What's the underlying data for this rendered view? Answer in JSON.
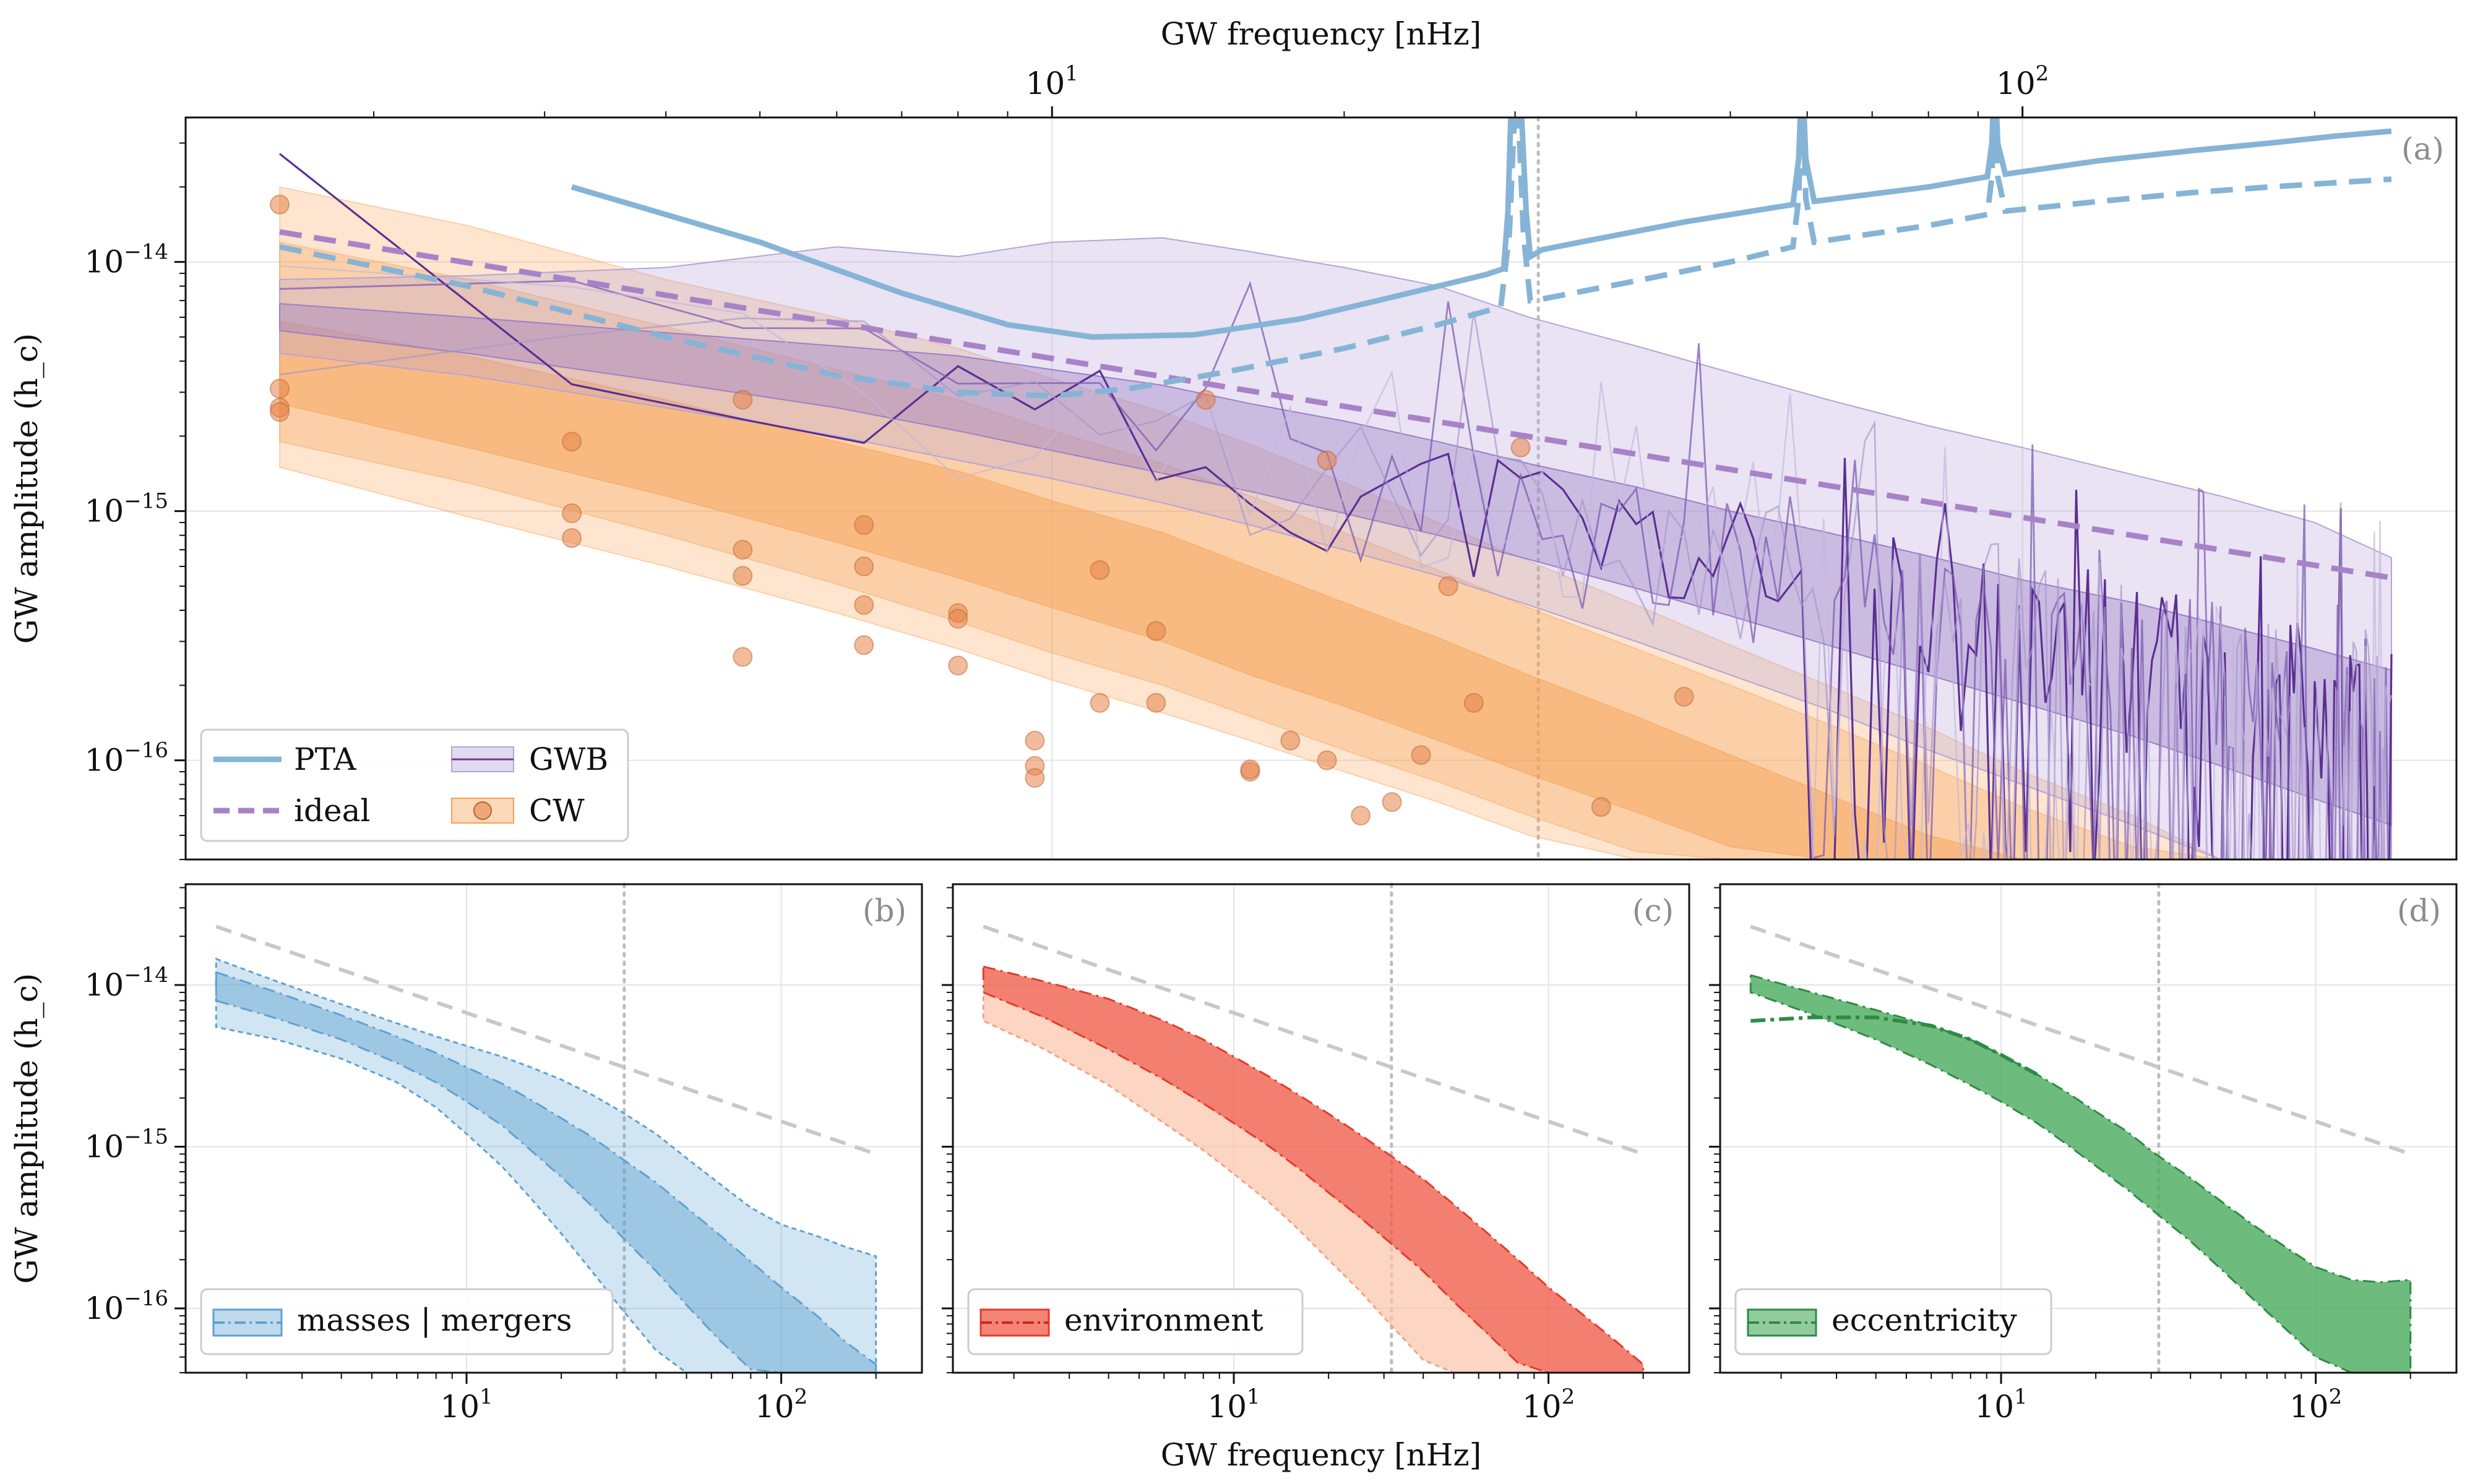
{
  "figure": {
    "top_xlabel": "GW frequency [nHz]",
    "bottom_xlabel": "GW frequency [nHz]",
    "ylabel": "GW amplitude (h_c)"
  },
  "chart_data": [
    {
      "panel": "(a)",
      "type": "line",
      "xscale": "log",
      "yscale": "log",
      "xlim": [
        1.28,
        280
      ],
      "ylim": [
        4e-17,
        3.8e-14
      ],
      "grid": true,
      "x_tick_labels": [
        "10^1",
        "10^2"
      ],
      "y_tick_labels": [
        "10^-14",
        "10^-15",
        "10^-16"
      ],
      "legend": {
        "placement": "lower-left",
        "entries": [
          "PTA",
          "ideal",
          "GWB",
          "CW"
        ]
      },
      "vline_x": 31.7,
      "colors": {
        "pta": "#86b4d6",
        "ideal": "#a882c8",
        "gwb": "#6a3d9a",
        "gwb_band": "#b7a3d6",
        "cw": "#f7a052",
        "cw_point": "#e8844a"
      },
      "series": [
        {
          "name": "PTA",
          "style": "solid",
          "x": [
            3.2,
            5,
            7,
            9,
            11,
            14,
            18,
            22,
            26,
            28,
            29.2,
            29.5,
            29.8,
            30.3,
            30.8,
            31.1,
            32,
            35,
            45,
            58,
            58.8,
            59.3,
            59.8,
            61,
            80,
            92,
            93,
            93.6,
            94.3,
            96,
            120,
            150,
            180,
            210,
            240
          ],
          "y": [
            2e-14,
            1.2e-14,
            7.5e-15,
            5.6e-15,
            5e-15,
            5.1e-15,
            5.9e-15,
            7.1e-15,
            8.3e-15,
            8.9e-15,
            9.4e-15,
            1.6e-14,
            6e-14,
            6e-14,
            1.6e-14,
            1.05e-14,
            1.12e-14,
            1.2e-14,
            1.45e-14,
            1.7e-14,
            2.6e-14,
            6e-14,
            2.6e-14,
            1.75e-14,
            2e-14,
            2.2e-14,
            3e-14,
            6e-14,
            3e-14,
            2.25e-14,
            2.55e-14,
            2.8e-14,
            3e-14,
            3.2e-14,
            3.35e-14
          ]
        },
        {
          "name": "PTA (ideal)",
          "style": "dashed",
          "x": [
            1.6,
            2.5,
            4,
            6,
            8,
            10,
            12,
            15,
            20,
            25,
            29,
            29.6,
            30.1,
            30.6,
            31.1,
            32,
            40,
            50,
            58,
            58.8,
            59.3,
            59.8,
            61,
            80,
            92,
            93,
            93.6,
            94.3,
            96,
            120,
            150,
            180,
            240
          ],
          "y": [
            1.15e-14,
            8e-15,
            5e-15,
            3.5e-15,
            3e-15,
            2.9e-15,
            3.1e-15,
            3.6e-15,
            4.5e-15,
            5.6e-15,
            6.6e-15,
            1.3e-14,
            6e-14,
            1.3e-14,
            7e-15,
            7.1e-15,
            8.4e-15,
            1e-14,
            1.15e-14,
            1.8e-14,
            6e-14,
            1.8e-14,
            1.2e-14,
            1.4e-14,
            1.55e-14,
            2.2e-14,
            6e-14,
            2.2e-14,
            1.6e-14,
            1.75e-14,
            1.9e-14,
            2e-14,
            2.15e-14
          ]
        },
        {
          "name": "ideal",
          "style": "dashed",
          "x": [
            1.6,
            240
          ],
          "y": [
            1.32e-14,
            5.4e-16
          ]
        },
        {
          "name": "GWB",
          "style": "realizations",
          "x": [
            1.6,
            2.5,
            4,
            6,
            8,
            10,
            13,
            16,
            20,
            25,
            31,
            40,
            50,
            63,
            80,
            100,
            130,
            160,
            200,
            240
          ],
          "y_median": [
            6e-15,
            4.9e-15,
            3.8e-15,
            3e-15,
            2.5e-15,
            2.1e-15,
            1.75e-15,
            1.5e-15,
            1.28e-15,
            1.08e-15,
            9e-16,
            7.3e-16,
            6e-16,
            4.9e-16,
            4e-16,
            3.2e-16,
            2.6e-16,
            2.2e-16,
            1.8e-16,
            1.6e-16
          ],
          "band_outer_lo": [
            4.3e-15,
            3.5e-15,
            2.6e-15,
            2e-15,
            1.6e-15,
            1.35e-15,
            1.08e-15,
            8.8e-16,
            7e-16,
            5.5e-16,
            4.2e-16,
            3e-16,
            2.2e-16,
            1.6e-16,
            1.1e-16,
            8e-17,
            5.5e-17,
            4e-17,
            4e-17,
            4e-17
          ],
          "band_outer_hi": [
            8.5e-15,
            8.8e-15,
            9.5e-15,
            1.15e-14,
            1.05e-14,
            1.2e-14,
            1.25e-14,
            1.1e-14,
            9.5e-15,
            8e-15,
            6e-15,
            4.6e-15,
            3.6e-15,
            2.8e-15,
            2.2e-15,
            1.8e-15,
            1.4e-15,
            1.15e-15,
            9e-16,
            6.5e-16
          ],
          "band_inner_lo": [
            5.3e-15,
            4.3e-15,
            3.3e-15,
            2.6e-15,
            2.1e-15,
            1.75e-15,
            1.42e-15,
            1.2e-15,
            9.8e-16,
            8e-16,
            6.4e-16,
            4.9e-16,
            3.8e-16,
            2.9e-16,
            2.2e-16,
            1.7e-16,
            1.25e-16,
            9.5e-17,
            7e-17,
            5.5e-17
          ],
          "band_inner_hi": [
            6.8e-15,
            6e-15,
            5.2e-15,
            4.6e-15,
            4.2e-15,
            3.7e-15,
            3.2e-15,
            2.7e-15,
            2.3e-15,
            1.9e-15,
            1.55e-15,
            1.25e-15,
            1e-15,
            8.2e-16,
            6.6e-16,
            5.3e-16,
            4.3e-16,
            3.5e-16,
            2.8e-16,
            2.3e-16
          ]
        },
        {
          "name": "CW",
          "style": "bands",
          "x": [
            1.6,
            2.5,
            4,
            6,
            8,
            10,
            13,
            16,
            20,
            25,
            31,
            40,
            50,
            63,
            80,
            100,
            130,
            160,
            200,
            240
          ],
          "band_outer_lo": [
            1.5e-15,
            9.5e-16,
            6e-16,
            3.9e-16,
            2.8e-16,
            2.1e-16,
            1.55e-16,
            1.2e-16,
            9e-17,
            6.8e-17,
            5e-17,
            4e-17,
            4e-17,
            4e-17,
            4e-17,
            4e-17,
            4e-17,
            4e-17,
            4e-17,
            4e-17
          ],
          "band_outer_hi": [
            2e-14,
            1.4e-14,
            8.5e-15,
            6e-15,
            4.5e-15,
            3.4e-15,
            2.5e-15,
            1.85e-15,
            1.3e-15,
            9e-16,
            6.3e-16,
            4.2e-16,
            2.9e-16,
            2e-16,
            1.35e-16,
            9e-17,
            6e-17,
            4e-17,
            4e-17,
            4e-17
          ],
          "band_mid_lo": [
            1.9e-15,
            1.3e-15,
            8e-16,
            5.1e-16,
            3.6e-16,
            2.7e-16,
            2e-16,
            1.5e-16,
            1.1e-16,
            8.2e-17,
            6e-17,
            4.3e-17,
            4e-17,
            4e-17,
            4e-17,
            4e-17,
            4e-17,
            4e-17,
            4e-17,
            4e-17
          ],
          "band_mid_hi": [
            1.2e-14,
            8.5e-15,
            5.5e-15,
            3.7e-15,
            2.8e-15,
            2.1e-15,
            1.55e-15,
            1.15e-15,
            8.2e-16,
            5.8e-16,
            4.1e-16,
            2.8e-16,
            2e-16,
            1.4e-16,
            9.5e-17,
            6.5e-17,
            4.5e-17,
            4e-17,
            4e-17,
            4e-17
          ],
          "band_inner_lo": [
            2.7e-15,
            1.8e-15,
            1.15e-15,
            7.5e-16,
            5.4e-16,
            4.1e-16,
            3e-16,
            2.2e-16,
            1.65e-16,
            1.2e-16,
            8.8e-17,
            6.2e-17,
            4.5e-17,
            4e-17,
            4e-17,
            4e-17,
            4e-17,
            4e-17,
            4e-17,
            4e-17
          ],
          "band_inner_hi": [
            5.8e-15,
            4.2e-15,
            2.8e-15,
            1.9e-15,
            1.45e-15,
            1.1e-15,
            8.2e-16,
            6e-16,
            4.3e-16,
            3.1e-16,
            2.2e-16,
            1.5e-16,
            1.05e-16,
            7.3e-17,
            5e-17,
            4e-17,
            4e-17,
            4e-17,
            4e-17,
            4e-17
          ],
          "points_x": [
            1.6,
            1.6,
            1.6,
            1.6,
            3.2,
            3.2,
            3.2,
            4.8,
            4.8,
            4.8,
            4.8,
            6.4,
            6.4,
            6.4,
            6.4,
            8.0,
            8.0,
            8.0,
            9.6,
            9.6,
            9.6,
            11.2,
            11.2,
            12.8,
            12.8,
            14.4,
            16.0,
            16.0,
            17.6,
            19.2,
            19.2,
            20.8,
            22.4,
            24.0,
            25.6,
            27.2,
            30.4,
            36.8,
            44.8
          ],
          "points_y": [
            1.7e-14,
            3.1e-15,
            2.6e-15,
            2.5e-15,
            1.9e-15,
            9.8e-16,
            7.8e-16,
            2.8e-15,
            7e-16,
            5.5e-16,
            2.6e-16,
            8.8e-16,
            6e-16,
            4.2e-16,
            2.9e-16,
            3.9e-16,
            3.7e-16,
            2.4e-16,
            9.5e-17,
            8.5e-17,
            1.2e-16,
            5.8e-16,
            1.7e-16,
            3.3e-16,
            1.7e-16,
            2.8e-15,
            9e-17,
            9.2e-17,
            1.2e-16,
            1.6e-15,
            1e-16,
            6e-17,
            6.8e-17,
            1.05e-16,
            5e-16,
            1.7e-16,
            1.8e-15,
            6.5e-17,
            1.8e-16
          ]
        }
      ]
    },
    {
      "panel": "(b)",
      "type": "area",
      "xscale": "log",
      "yscale": "log",
      "xlim": [
        1.28,
        280
      ],
      "ylim": [
        4e-17,
        4.2e-14
      ],
      "grid": true,
      "x_tick_labels": [
        "10^1",
        "10^2"
      ],
      "y_tick_labels": [
        "10^-14",
        "10^-15",
        "10^-16"
      ],
      "legend": {
        "placement": "lower-left",
        "entries": [
          "masses | mergers"
        ]
      },
      "vline_x": 31.7,
      "colors": {
        "band": "#5fa2d2",
        "reference": "#c8c8c8"
      },
      "reference_line": {
        "x": [
          1.6,
          200
        ],
        "y": [
          2.3e-14,
          9e-16
        ]
      },
      "x": [
        1.6,
        2.5,
        4,
        6,
        8,
        10,
        13,
        16,
        20,
        25,
        31,
        40,
        50,
        63,
        80,
        100,
        130,
        160,
        200
      ],
      "band_outer_lo": [
        5.5e-15,
        4.6e-15,
        3.5e-15,
        2.5e-15,
        1.75e-15,
        1.2e-15,
        7.5e-16,
        4.8e-16,
        2.9e-16,
        1.7e-16,
        1e-16,
        5.5e-17,
        4e-17,
        4e-17,
        4e-17,
        4e-17,
        4e-17,
        4e-17,
        4e-17
      ],
      "band_outer_hi": [
        1.45e-14,
        1.05e-14,
        7.6e-15,
        5.8e-15,
        4.8e-15,
        4.2e-15,
        3.6e-15,
        3.1e-15,
        2.6e-15,
        2.1e-15,
        1.65e-15,
        1.2e-15,
        8.5e-16,
        6e-16,
        4.2e-16,
        3.3e-16,
        2.8e-16,
        2.4e-16,
        2.1e-16
      ],
      "band_mid_lo": [
        8e-15,
        6.2e-15,
        4.6e-15,
        3.3e-15,
        2.5e-15,
        1.9e-15,
        1.35e-15,
        9.5e-16,
        6.5e-16,
        4.3e-16,
        2.8e-16,
        1.7e-16,
        1.05e-16,
        6.5e-17,
        4.2e-17,
        4e-17,
        4e-17,
        4e-17,
        4e-17
      ],
      "band_mid_hi": [
        1.2e-14,
        9e-15,
        6.5e-15,
        4.8e-15,
        3.8e-15,
        3.1e-15,
        2.45e-15,
        1.95e-15,
        1.5e-15,
        1.15e-15,
        8.5e-16,
        6e-16,
        4.2e-16,
        2.9e-16,
        1.95e-16,
        1.35e-16,
        9e-17,
        6.2e-17,
        4.5e-17
      ]
    },
    {
      "panel": "(c)",
      "type": "area",
      "xscale": "log",
      "yscale": "log",
      "xlim": [
        1.28,
        280
      ],
      "ylim": [
        4e-17,
        4.2e-14
      ],
      "grid": true,
      "x_tick_labels": [
        "10^1",
        "10^2"
      ],
      "y_tick_labels": [
        "10^-14",
        "10^-15",
        "10^-16"
      ],
      "legend": {
        "placement": "lower-left",
        "entries": [
          "environment"
        ]
      },
      "vline_x": 31.7,
      "colors": {
        "band": "#ef5b48",
        "band_light": "#fbc3aa",
        "reference": "#c8c8c8"
      },
      "reference_line": {
        "x": [
          1.6,
          200
        ],
        "y": [
          2.3e-14,
          9e-16
        ]
      },
      "x": [
        1.6,
        2.5,
        4,
        6,
        8,
        10,
        13,
        16,
        20,
        25,
        31,
        40,
        50,
        63,
        80,
        100,
        130,
        160,
        200
      ],
      "band_main_lo": [
        9e-15,
        6.3e-15,
        4e-15,
        2.6e-15,
        1.85e-15,
        1.4e-15,
        1e-15,
        7.4e-16,
        5.2e-16,
        3.7e-16,
        2.6e-16,
        1.7e-16,
        1.1e-16,
        7.2e-17,
        4.6e-17,
        4e-17,
        4e-17,
        4e-17,
        4e-17
      ],
      "band_main_hi": [
        1.3e-14,
        1.05e-14,
        8.2e-15,
        6e-15,
        4.6e-15,
        3.6e-15,
        2.7e-15,
        2.1e-15,
        1.6e-15,
        1.2e-15,
        9e-16,
        6.3e-16,
        4.4e-16,
        3e-16,
        2e-16,
        1.35e-16,
        9e-17,
        6.5e-17,
        4.5e-17
      ],
      "band_light_lo": [
        6e-15,
        4e-15,
        2.4e-15,
        1.4e-15,
        9.5e-16,
        6.8e-16,
        4.5e-16,
        3.1e-16,
        2e-16,
        1.3e-16,
        8.2e-17,
        4.8e-17,
        4e-17,
        4e-17,
        4e-17,
        4e-17,
        4e-17,
        4e-17,
        4e-17
      ]
    },
    {
      "panel": "(d)",
      "type": "area",
      "xscale": "log",
      "yscale": "log",
      "xlim": [
        1.28,
        280
      ],
      "ylim": [
        4e-17,
        4.2e-14
      ],
      "grid": true,
      "x_tick_labels": [
        "10^1",
        "10^2"
      ],
      "y_tick_labels": [
        "10^-14",
        "10^-15",
        "10^-16"
      ],
      "legend": {
        "placement": "lower-left",
        "entries": [
          "eccentricity"
        ]
      },
      "vline_x": 31.7,
      "colors": {
        "band": "#4aaa5e",
        "line": "#2e8b45",
        "reference": "#c8c8c8"
      },
      "reference_line": {
        "x": [
          1.6,
          200
        ],
        "y": [
          2.3e-14,
          9e-16
        ]
      },
      "x": [
        1.6,
        2.5,
        4,
        6,
        8,
        10,
        13,
        16,
        20,
        25,
        31,
        40,
        50,
        63,
        80,
        100,
        130,
        160,
        200
      ],
      "band_lo": [
        9e-15,
        6.6e-15,
        4.6e-15,
        3.2e-15,
        2.4e-15,
        1.9e-15,
        1.4e-15,
        1.05e-15,
        7.6e-16,
        5.5e-16,
        3.9e-16,
        2.6e-16,
        1.75e-16,
        1.15e-16,
        7.5e-17,
        5e-17,
        4e-17,
        4e-17,
        4e-17
      ],
      "band_hi": [
        1.15e-14,
        9e-15,
        7e-15,
        5.6e-15,
        4.6e-15,
        3.7e-15,
        2.8e-15,
        2.2e-15,
        1.65e-15,
        1.25e-15,
        9e-16,
        6.4e-16,
        4.6e-16,
        3.3e-16,
        2.4e-16,
        1.8e-16,
        1.5e-16,
        1.45e-16,
        1.5e-16
      ],
      "low_ecc_line": {
        "x": [
          1.6,
          2.5,
          4,
          6,
          8,
          10,
          13
        ],
        "y": [
          6e-15,
          6.3e-15,
          6.3e-15,
          5.6e-15,
          4.6e-15,
          3.7e-15,
          2.8e-15
        ]
      }
    }
  ]
}
